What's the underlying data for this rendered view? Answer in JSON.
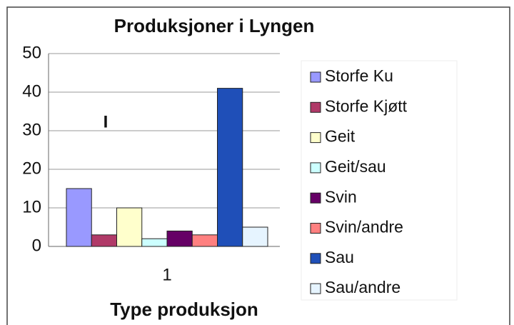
{
  "chart_data": {
    "type": "bar",
    "title": "Produksjoner i Lyngen",
    "x_label": "Type produksjon",
    "annotation": "I",
    "categories": [
      "1"
    ],
    "series": [
      {
        "name": "Storfe Ku",
        "color": "#9999ff",
        "values": [
          15
        ]
      },
      {
        "name": "Storfe Kjøtt",
        "color": "#b03a68",
        "values": [
          3
        ]
      },
      {
        "name": "Geit",
        "color": "#ffffcc",
        "values": [
          10
        ]
      },
      {
        "name": "Geit/sau",
        "color": "#ccffff",
        "values": [
          2
        ]
      },
      {
        "name": "Svin",
        "color": "#660066",
        "values": [
          4
        ]
      },
      {
        "name": "Svin/andre",
        "color": "#ff8080",
        "values": [
          3
        ]
      },
      {
        "name": "Sau",
        "color": "#1f4fb8",
        "values": [
          41
        ]
      },
      {
        "name": "Sau/andre",
        "color": "#e6f4ff",
        "values": [
          5
        ]
      }
    ],
    "ylim": [
      0,
      50
    ],
    "yticks": [
      0,
      10,
      20,
      30,
      40,
      50
    ],
    "grid": true,
    "legend": "right"
  }
}
